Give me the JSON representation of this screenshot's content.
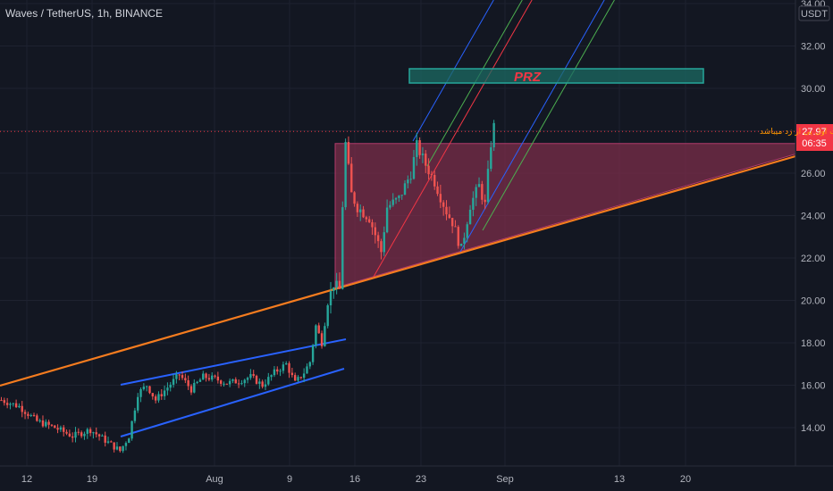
{
  "header": {
    "symbol": "Waves / TetherUS, 1h, BINANCE"
  },
  "colors": {
    "background": "#131722",
    "grid": "#1e2230",
    "up": "#26a69a",
    "down": "#ef5350",
    "trendline": "#f57c1f",
    "channel": "#2962ff",
    "fork_green": "#4caf50",
    "fork_red": "#f23645",
    "triangle_fill": "#7b2d4a",
    "prz_fill": "#1c6b63",
    "prz_border": "#26a69a",
    "price_tag": "#f23645",
    "note_text": "#ff9800"
  },
  "chart_data": {
    "type": "candlestick",
    "instrument": "Waves / TetherUS",
    "timeframe": "1h",
    "exchange": "BINANCE",
    "y_axis": {
      "unit": "USDT",
      "ticks": [
        "34.00",
        "32.00",
        "30.00",
        "28.00",
        "26.00",
        "24.00",
        "22.00",
        "20.00",
        "18.00",
        "16.00",
        "14.00"
      ],
      "range": [
        12.4,
        34.2
      ]
    },
    "x_axis": {
      "ticks": [
        "12",
        "19",
        "Aug",
        "9",
        "16",
        "23",
        "Sep",
        "13",
        "20"
      ]
    },
    "price_path": [
      [
        0,
        15.3
      ],
      [
        6,
        15.0
      ],
      [
        12,
        14.3
      ],
      [
        18,
        14.0
      ],
      [
        24,
        13.6
      ],
      [
        30,
        13.9
      ],
      [
        36,
        13.3
      ],
      [
        40,
        12.9
      ],
      [
        43,
        13.6
      ],
      [
        46,
        15.6
      ],
      [
        49,
        16.0
      ],
      [
        52,
        15.3
      ],
      [
        56,
        15.9
      ],
      [
        60,
        16.5
      ],
      [
        64,
        15.8
      ],
      [
        68,
        16.4
      ],
      [
        72,
        16.3
      ],
      [
        76,
        16.1
      ],
      [
        80,
        16.2
      ],
      [
        84,
        16.4
      ],
      [
        88,
        16.0
      ],
      [
        92,
        16.6
      ],
      [
        96,
        17.0
      ],
      [
        99,
        16.1
      ],
      [
        102,
        16.6
      ],
      [
        104,
        17.1
      ],
      [
        106,
        18.8
      ],
      [
        108,
        18.0
      ],
      [
        110,
        19.9
      ],
      [
        112,
        20.8
      ],
      [
        114,
        20.5
      ],
      [
        115,
        24.5
      ],
      [
        116,
        27.4
      ],
      [
        118,
        25.0
      ],
      [
        120,
        24.4
      ],
      [
        124,
        23.9
      ],
      [
        128,
        22.3
      ],
      [
        130,
        24.4
      ],
      [
        134,
        24.8
      ],
      [
        138,
        26.0
      ],
      [
        140,
        27.3
      ],
      [
        143,
        26.4
      ],
      [
        146,
        25.6
      ],
      [
        150,
        24.2
      ],
      [
        152,
        23.7
      ],
      [
        155,
        22.4
      ],
      [
        158,
        24.5
      ],
      [
        161,
        25.4
      ],
      [
        163,
        24.5
      ],
      [
        165,
        27.4
      ],
      [
        166,
        28.2
      ]
    ],
    "current_price": "27.97",
    "countdown": "06:35",
    "annotations": {
      "zone_label": "PRZ",
      "note": "بعد از شکست خط قرمز چنگال دارگت اول پی ار زد میباشد"
    }
  }
}
